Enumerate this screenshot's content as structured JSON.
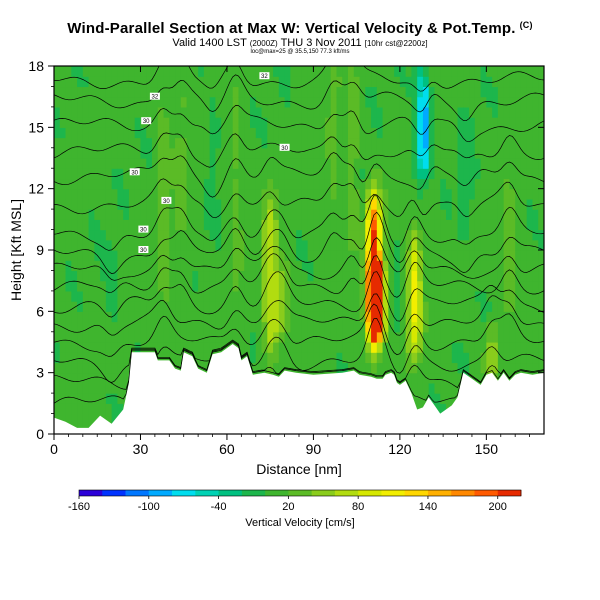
{
  "header": {
    "title": "Wind-Parallel Section at Max W: Vertical Velocity & Pot.Temp.",
    "corner_mark": "(C)",
    "subtitle_main": "Valid 1400 LST",
    "subtitle_small": "(2000Z)",
    "subtitle_date": "THU 3 Nov 2011",
    "subtitle_tail": "[10hr cst@2200z]",
    "subtitle_note": "loc@max=25 @ 35.5,150 77.3 kft/ms"
  },
  "chart_data": {
    "type": "heatmap",
    "title": "Wind-Parallel Section at Max W: Vertical Velocity & Pot.Temp.",
    "xlabel": "Distance [nm]",
    "ylabel": "Height [Kft MSL]",
    "xlim": [
      0,
      170
    ],
    "ylim": [
      0,
      18
    ],
    "xticks": [
      0,
      30,
      60,
      90,
      120,
      150
    ],
    "yticks": [
      0,
      3,
      6,
      9,
      12,
      15,
      18
    ],
    "colorbar": {
      "label": "Vertical Velocity [cm/s]",
      "tick_labels": [
        "-160",
        "-100",
        "-40",
        "20",
        "80",
        "140",
        "200"
      ],
      "tick_values": [
        -160,
        -100,
        -40,
        20,
        80,
        140,
        200
      ],
      "range": [
        -160,
        220
      ],
      "step": 20,
      "colors": [
        "#2b00d8",
        "#0033ff",
        "#0077ff",
        "#00aaff",
        "#00ddee",
        "#00d2b4",
        "#00c080",
        "#1db64c",
        "#3fb52e",
        "#5bbb26",
        "#8acc1c",
        "#b2dc10",
        "#d6e800",
        "#f2ee00",
        "#ffd700",
        "#ffb000",
        "#ff8800",
        "#ff5a00",
        "#e62a00"
      ]
    },
    "background_value": 5,
    "updrafts": [
      {
        "x": 38,
        "h_lo": 3.5,
        "h_hi": 17.5,
        "w": 25
      },
      {
        "x": 44,
        "h_lo": 8,
        "h_hi": 18,
        "w": 20
      },
      {
        "x": 63,
        "h_lo": 6,
        "h_hi": 17,
        "w": 22
      },
      {
        "x": 75,
        "h_lo": 4,
        "h_hi": 11.5,
        "w": 70
      },
      {
        "x": 79,
        "h_lo": 5,
        "h_hi": 8,
        "w": 50
      },
      {
        "x": 97,
        "h_lo": 10,
        "h_hi": 18,
        "w": 22
      },
      {
        "x": 104,
        "h_lo": 9,
        "h_hi": 18,
        "w": 28
      },
      {
        "x": 111,
        "h_lo": 4.5,
        "h_hi": 11.5,
        "w": 205
      },
      {
        "x": 112,
        "h_lo": 5,
        "h_hi": 8,
        "w": 200
      },
      {
        "x": 125,
        "h_lo": 4,
        "h_hi": 9.5,
        "w": 100
      },
      {
        "x": 130,
        "h_lo": 12,
        "h_hi": 18,
        "w": 38
      },
      {
        "x": 158,
        "h_lo": 6,
        "h_hi": 12,
        "w": 30
      },
      {
        "x": 152,
        "h_lo": 3,
        "h_hi": 5,
        "w": 50
      }
    ],
    "downdrafts": [
      {
        "x": 107,
        "h_lo": 9,
        "h_hi": 13.5,
        "w": -12
      },
      {
        "x": 120,
        "h_lo": 4,
        "h_hi": 10,
        "w": -10
      },
      {
        "x": 128,
        "h_lo": 12.5,
        "h_hi": 18,
        "w": -55
      },
      {
        "x": 129,
        "h_lo": 13,
        "h_hi": 17,
        "w": -75
      },
      {
        "x": 55,
        "h_lo": 11,
        "h_hi": 16,
        "w": -10
      },
      {
        "x": 20,
        "h_lo": 5,
        "h_hi": 9,
        "w": -12
      },
      {
        "x": 143,
        "h_lo": 10,
        "h_hi": 15,
        "w": -15
      }
    ],
    "terrain_kft": [
      [
        0,
        0.8
      ],
      [
        4,
        0.6
      ],
      [
        8,
        0.3
      ],
      [
        12,
        0.3
      ],
      [
        16,
        0.9
      ],
      [
        20,
        0.5
      ],
      [
        24,
        1.2
      ],
      [
        26,
        2.5
      ],
      [
        27,
        4.0
      ],
      [
        35,
        4.0
      ],
      [
        36,
        3.6
      ],
      [
        40,
        3.6
      ],
      [
        42,
        3.2
      ],
      [
        44,
        3.1
      ],
      [
        45,
        4.0
      ],
      [
        48,
        3.8
      ],
      [
        50,
        3.2
      ],
      [
        53,
        3.0
      ],
      [
        55,
        3.9
      ],
      [
        58,
        4.0
      ],
      [
        60,
        4.2
      ],
      [
        62,
        4.4
      ],
      [
        64,
        4.2
      ],
      [
        65,
        3.6
      ],
      [
        67,
        3.8
      ],
      [
        69,
        2.9
      ],
      [
        73,
        3.0
      ],
      [
        76,
        2.9
      ],
      [
        78,
        2.8
      ],
      [
        80,
        3.1
      ],
      [
        84,
        3.0
      ],
      [
        90,
        2.9
      ],
      [
        100,
        3.0
      ],
      [
        104,
        3.1
      ],
      [
        106,
        2.9
      ],
      [
        110,
        2.8
      ],
      [
        112,
        2.7
      ],
      [
        114,
        2.7
      ],
      [
        115,
        2.9
      ],
      [
        117,
        3.0
      ],
      [
        118,
        2.9
      ],
      [
        119,
        2.5
      ],
      [
        120,
        2.4
      ],
      [
        122,
        2.6
      ],
      [
        124,
        2.0
      ],
      [
        126,
        1.2
      ],
      [
        128,
        1.3
      ],
      [
        130,
        1.8
      ],
      [
        132,
        1.4
      ],
      [
        134,
        1.0
      ],
      [
        136,
        1.2
      ],
      [
        138,
        1.4
      ],
      [
        140,
        1.8
      ],
      [
        142,
        3.0
      ],
      [
        144,
        2.8
      ],
      [
        146,
        2.6
      ],
      [
        148,
        2.4
      ],
      [
        150,
        2.9
      ],
      [
        152,
        3.0
      ],
      [
        154,
        2.6
      ],
      [
        156,
        3.0
      ],
      [
        158,
        2.6
      ],
      [
        160,
        2.9
      ],
      [
        162,
        3.0
      ],
      [
        166,
        2.9
      ],
      [
        170,
        3.0
      ]
    ],
    "isentropes": [
      {
        "base": 1.5,
        "label": "",
        "label_x": 0
      },
      {
        "base": 2.5,
        "label": "",
        "label_x": 0
      },
      {
        "base": 3.5,
        "label": "",
        "label_x": 0
      },
      {
        "base": 4.5,
        "label": "",
        "label_x": 0
      },
      {
        "base": 5.4,
        "label": "",
        "label_x": 0
      },
      {
        "base": 6.3,
        "label": "",
        "label_x": 0
      },
      {
        "base": 7.2,
        "label": "",
        "label_x": 0
      },
      {
        "base": 8.0,
        "label": "",
        "label_x": 0
      },
      {
        "base": 8.8,
        "label": "30",
        "label_x": 31
      },
      {
        "base": 9.8,
        "label": "30",
        "label_x": 31
      },
      {
        "base": 11.2,
        "label": "30",
        "label_x": 39
      },
      {
        "base": 12.6,
        "label": "30",
        "label_x": 28
      },
      {
        "base": 13.8,
        "label": "30",
        "label_x": 80
      },
      {
        "base": 15.1,
        "label": "30",
        "label_x": 32
      },
      {
        "base": 16.3,
        "label": "32",
        "label_x": 35
      },
      {
        "base": 17.3,
        "label": "32",
        "label_x": 73
      }
    ]
  },
  "colorbar_label": "Vertical Velocity [cm/s]"
}
